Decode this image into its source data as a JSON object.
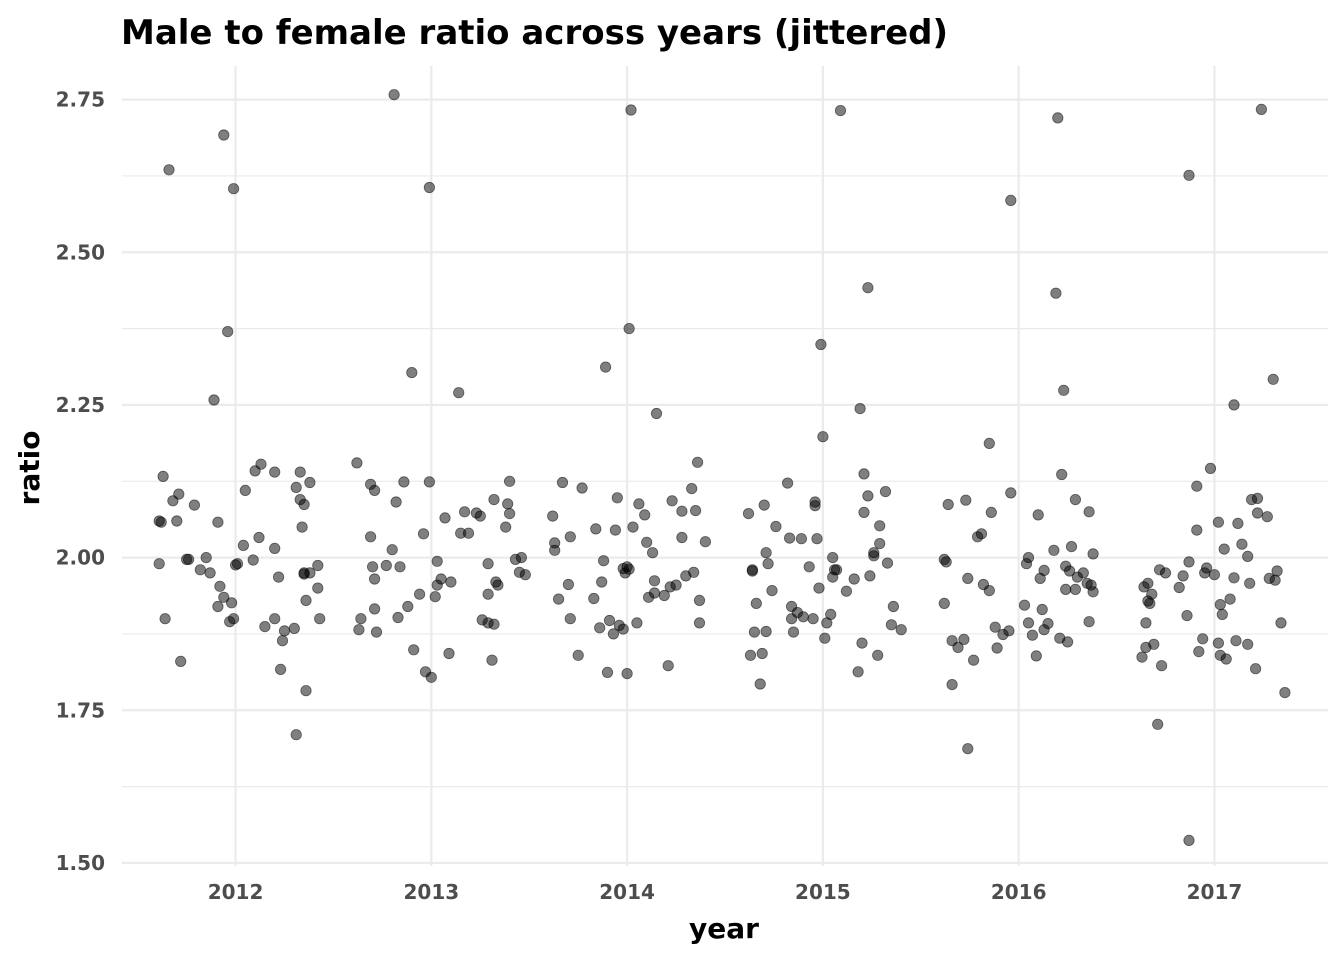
{
  "chart_data": {
    "type": "scatter",
    "title": "Male to female ratio across years (jittered)",
    "xlabel": "year",
    "ylabel": "ratio",
    "xlim": [
      2011.42,
      2017.58
    ],
    "ylim": [
      1.495,
      2.805
    ],
    "x_ticks": [
      2012,
      2013,
      2014,
      2015,
      2016,
      2017
    ],
    "x_tick_labels": [
      "2012",
      "2013",
      "2014",
      "2015",
      "2016",
      "2017"
    ],
    "y_ticks": [
      1.5,
      1.75,
      2.0,
      2.25,
      2.5,
      2.75
    ],
    "y_tick_labels": [
      "1.50",
      "1.75",
      "2.00",
      "2.25",
      "2.50",
      "2.75"
    ],
    "y_minor_ticks": [
      1.625,
      1.875,
      2.125,
      2.375,
      2.625
    ],
    "grid": true,
    "legend": "none",
    "point_color": "#000000",
    "points": [
      [
        2011.66,
        2.635
      ],
      [
        2011.61,
        2.06
      ],
      [
        2011.62,
        2.058
      ],
      [
        2011.63,
        2.133
      ],
      [
        2011.61,
        1.99
      ],
      [
        2011.64,
        1.9
      ],
      [
        2011.68,
        2.093
      ],
      [
        2011.7,
        2.06
      ],
      [
        2011.71,
        2.104
      ],
      [
        2011.72,
        1.83
      ],
      [
        2011.75,
        1.997
      ],
      [
        2011.76,
        1.997
      ],
      [
        2011.79,
        2.086
      ],
      [
        2011.82,
        1.98
      ],
      [
        2011.85,
        2.0
      ],
      [
        2011.87,
        1.975
      ],
      [
        2011.89,
        2.258
      ],
      [
        2011.91,
        2.058
      ],
      [
        2011.92,
        1.953
      ],
      [
        2011.91,
        1.92
      ],
      [
        2011.94,
        2.692
      ],
      [
        2011.96,
        2.37
      ],
      [
        2011.94,
        1.935
      ],
      [
        2011.97,
        1.895
      ],
      [
        2011.98,
        1.926
      ],
      [
        2011.99,
        2.604
      ],
      [
        2012.0,
        1.988
      ],
      [
        2012.01,
        1.99
      ],
      [
        2011.99,
        1.9
      ],
      [
        2012.05,
        2.11
      ],
      [
        2012.04,
        2.02
      ],
      [
        2012.09,
        1.996
      ],
      [
        2012.1,
        2.142
      ],
      [
        2012.13,
        2.153
      ],
      [
        2012.12,
        2.033
      ],
      [
        2012.15,
        1.887
      ],
      [
        2012.2,
        2.015
      ],
      [
        2012.2,
        2.14
      ],
      [
        2012.2,
        1.9
      ],
      [
        2012.22,
        1.968
      ],
      [
        2012.23,
        1.817
      ],
      [
        2012.24,
        1.864
      ],
      [
        2012.25,
        1.88
      ],
      [
        2012.3,
        1.884
      ],
      [
        2012.31,
        1.71
      ],
      [
        2012.31,
        2.115
      ],
      [
        2012.33,
        2.14
      ],
      [
        2012.33,
        2.095
      ],
      [
        2012.34,
        2.05
      ],
      [
        2012.35,
        2.087
      ],
      [
        2012.36,
        1.93
      ],
      [
        2012.35,
        1.975
      ],
      [
        2012.35,
        1.973
      ],
      [
        2012.36,
        1.782
      ],
      [
        2012.38,
        2.123
      ],
      [
        2012.38,
        1.975
      ],
      [
        2012.42,
        1.987
      ],
      [
        2012.42,
        1.95
      ],
      [
        2012.43,
        1.9
      ],
      [
        2012.62,
        2.155
      ],
      [
        2012.63,
        1.882
      ],
      [
        2012.64,
        1.9
      ],
      [
        2012.69,
        2.12
      ],
      [
        2012.69,
        2.034
      ],
      [
        2012.7,
        1.985
      ],
      [
        2012.71,
        2.11
      ],
      [
        2012.71,
        1.965
      ],
      [
        2012.71,
        1.916
      ],
      [
        2012.72,
        1.878
      ],
      [
        2012.77,
        1.987
      ],
      [
        2012.8,
        2.013
      ],
      [
        2012.81,
        2.758
      ],
      [
        2012.82,
        2.091
      ],
      [
        2012.83,
        1.902
      ],
      [
        2012.84,
        1.985
      ],
      [
        2012.86,
        2.124
      ],
      [
        2012.88,
        1.92
      ],
      [
        2012.9,
        2.303
      ],
      [
        2012.91,
        1.849
      ],
      [
        2012.94,
        1.94
      ],
      [
        2012.96,
        2.039
      ],
      [
        2012.97,
        1.813
      ],
      [
        2012.99,
        2.606
      ],
      [
        2013.0,
        1.804
      ],
      [
        2012.99,
        2.124
      ],
      [
        2013.02,
        1.936
      ],
      [
        2013.03,
        1.955
      ],
      [
        2013.03,
        1.994
      ],
      [
        2013.05,
        1.965
      ],
      [
        2013.07,
        2.065
      ],
      [
        2013.09,
        1.843
      ],
      [
        2013.1,
        1.96
      ],
      [
        2013.14,
        2.27
      ],
      [
        2013.15,
        2.04
      ],
      [
        2013.17,
        2.075
      ],
      [
        2013.19,
        2.04
      ],
      [
        2013.23,
        2.073
      ],
      [
        2013.25,
        2.068
      ],
      [
        2013.26,
        1.898
      ],
      [
        2013.29,
        1.99
      ],
      [
        2013.29,
        1.94
      ],
      [
        2013.29,
        1.893
      ],
      [
        2013.31,
        1.832
      ],
      [
        2013.32,
        1.891
      ],
      [
        2013.32,
        2.095
      ],
      [
        2013.33,
        1.96
      ],
      [
        2013.34,
        1.955
      ],
      [
        2013.38,
        2.05
      ],
      [
        2013.39,
        2.088
      ],
      [
        2013.4,
        2.072
      ],
      [
        2013.4,
        2.125
      ],
      [
        2013.43,
        1.997
      ],
      [
        2013.45,
        1.976
      ],
      [
        2013.46,
        2.0
      ],
      [
        2013.48,
        1.972
      ],
      [
        2013.62,
        2.068
      ],
      [
        2013.63,
        2.012
      ],
      [
        2013.63,
        2.024
      ],
      [
        2013.65,
        1.932
      ],
      [
        2013.67,
        2.123
      ],
      [
        2013.7,
        1.956
      ],
      [
        2013.71,
        1.9
      ],
      [
        2013.71,
        2.034
      ],
      [
        2013.75,
        1.84
      ],
      [
        2013.77,
        2.114
      ],
      [
        2013.83,
        1.933
      ],
      [
        2013.84,
        2.047
      ],
      [
        2013.86,
        1.885
      ],
      [
        2013.87,
        1.96
      ],
      [
        2013.88,
        1.995
      ],
      [
        2013.89,
        2.312
      ],
      [
        2013.9,
        1.812
      ],
      [
        2013.91,
        1.897
      ],
      [
        2013.93,
        1.875
      ],
      [
        2013.94,
        2.045
      ],
      [
        2013.95,
        2.098
      ],
      [
        2013.96,
        1.889
      ],
      [
        2013.98,
        1.982
      ],
      [
        2013.98,
        1.883
      ],
      [
        2013.99,
        1.975
      ],
      [
        2014.0,
        1.81
      ],
      [
        2014.0,
        1.985
      ],
      [
        2014.01,
        1.981
      ],
      [
        2014.01,
        2.375
      ],
      [
        2014.02,
        2.733
      ],
      [
        2014.03,
        2.05
      ],
      [
        2014.05,
        1.893
      ],
      [
        2014.06,
        2.088
      ],
      [
        2014.09,
        2.07
      ],
      [
        2014.1,
        2.025
      ],
      [
        2014.11,
        1.935
      ],
      [
        2014.13,
        2.008
      ],
      [
        2014.14,
        1.942
      ],
      [
        2014.14,
        1.962
      ],
      [
        2014.15,
        2.236
      ],
      [
        2014.19,
        1.938
      ],
      [
        2014.21,
        1.823
      ],
      [
        2014.22,
        1.952
      ],
      [
        2014.23,
        2.093
      ],
      [
        2014.25,
        1.955
      ],
      [
        2014.28,
        2.076
      ],
      [
        2014.28,
        2.033
      ],
      [
        2014.3,
        1.97
      ],
      [
        2014.33,
        2.113
      ],
      [
        2014.34,
        1.976
      ],
      [
        2014.35,
        2.077
      ],
      [
        2014.36,
        2.156
      ],
      [
        2014.37,
        1.893
      ],
      [
        2014.37,
        1.93
      ],
      [
        2014.4,
        2.026
      ],
      [
        2014.62,
        2.072
      ],
      [
        2014.63,
        1.84
      ],
      [
        2014.64,
        1.98
      ],
      [
        2014.64,
        1.978
      ],
      [
        2014.65,
        1.878
      ],
      [
        2014.66,
        1.925
      ],
      [
        2014.68,
        1.793
      ],
      [
        2014.69,
        1.843
      ],
      [
        2014.7,
        2.086
      ],
      [
        2014.71,
        2.008
      ],
      [
        2014.71,
        1.879
      ],
      [
        2014.72,
        1.99
      ],
      [
        2014.74,
        1.946
      ],
      [
        2014.76,
        2.051
      ],
      [
        2014.82,
        2.122
      ],
      [
        2014.83,
        2.032
      ],
      [
        2014.84,
        1.9
      ],
      [
        2014.84,
        1.92
      ],
      [
        2014.85,
        1.878
      ],
      [
        2014.87,
        1.91
      ],
      [
        2014.89,
        2.031
      ],
      [
        2014.9,
        1.903
      ],
      [
        2014.93,
        1.985
      ],
      [
        2014.95,
        1.9
      ],
      [
        2014.96,
        2.091
      ],
      [
        2014.96,
        2.085
      ],
      [
        2014.97,
        2.031
      ],
      [
        2014.98,
        1.95
      ],
      [
        2014.99,
        2.349
      ],
      [
        2015.0,
        2.198
      ],
      [
        2015.01,
        1.868
      ],
      [
        2015.02,
        1.893
      ],
      [
        2015.04,
        1.907
      ],
      [
        2015.05,
        1.968
      ],
      [
        2015.05,
        2.0
      ],
      [
        2015.06,
        1.98
      ],
      [
        2015.07,
        1.98
      ],
      [
        2015.09,
        2.732
      ],
      [
        2015.12,
        1.945
      ],
      [
        2015.16,
        1.965
      ],
      [
        2015.18,
        1.813
      ],
      [
        2015.19,
        2.244
      ],
      [
        2015.2,
        1.86
      ],
      [
        2015.21,
        2.137
      ],
      [
        2015.21,
        2.074
      ],
      [
        2015.23,
        2.442
      ],
      [
        2015.23,
        2.101
      ],
      [
        2015.24,
        1.97
      ],
      [
        2015.26,
        2.003
      ],
      [
        2015.26,
        2.008
      ],
      [
        2015.28,
        1.84
      ],
      [
        2015.29,
        2.052
      ],
      [
        2015.29,
        2.023
      ],
      [
        2015.32,
        2.108
      ],
      [
        2015.33,
        1.991
      ],
      [
        2015.35,
        1.89
      ],
      [
        2015.36,
        1.92
      ],
      [
        2015.4,
        1.882
      ],
      [
        2015.62,
        1.925
      ],
      [
        2015.62,
        1.997
      ],
      [
        2015.63,
        1.993
      ],
      [
        2015.64,
        2.087
      ],
      [
        2015.66,
        1.864
      ],
      [
        2015.66,
        1.792
      ],
      [
        2015.69,
        1.853
      ],
      [
        2015.72,
        1.866
      ],
      [
        2015.73,
        2.094
      ],
      [
        2015.74,
        1.966
      ],
      [
        2015.74,
        1.687
      ],
      [
        2015.77,
        1.832
      ],
      [
        2015.79,
        2.034
      ],
      [
        2015.81,
        2.039
      ],
      [
        2015.82,
        1.956
      ],
      [
        2015.85,
        1.946
      ],
      [
        2015.85,
        2.187
      ],
      [
        2015.86,
        2.074
      ],
      [
        2015.88,
        1.886
      ],
      [
        2015.89,
        1.852
      ],
      [
        2015.92,
        1.874
      ],
      [
        2015.95,
        1.88
      ],
      [
        2015.96,
        2.106
      ],
      [
        2015.96,
        2.585
      ],
      [
        2016.03,
        1.922
      ],
      [
        2016.04,
        1.99
      ],
      [
        2016.05,
        2.0
      ],
      [
        2016.05,
        1.893
      ],
      [
        2016.07,
        1.873
      ],
      [
        2016.09,
        1.839
      ],
      [
        2016.1,
        2.07
      ],
      [
        2016.11,
        1.966
      ],
      [
        2016.12,
        1.915
      ],
      [
        2016.13,
        1.882
      ],
      [
        2016.13,
        1.979
      ],
      [
        2016.15,
        1.892
      ],
      [
        2016.18,
        2.012
      ],
      [
        2016.19,
        2.433
      ],
      [
        2016.2,
        2.72
      ],
      [
        2016.21,
        1.868
      ],
      [
        2016.22,
        2.136
      ],
      [
        2016.23,
        2.274
      ],
      [
        2016.24,
        1.986
      ],
      [
        2016.24,
        1.948
      ],
      [
        2016.25,
        1.862
      ],
      [
        2016.26,
        1.978
      ],
      [
        2016.27,
        2.018
      ],
      [
        2016.29,
        1.948
      ],
      [
        2016.29,
        2.095
      ],
      [
        2016.3,
        1.968
      ],
      [
        2016.33,
        1.975
      ],
      [
        2016.35,
        1.958
      ],
      [
        2016.36,
        2.075
      ],
      [
        2016.36,
        1.895
      ],
      [
        2016.37,
        1.955
      ],
      [
        2016.38,
        2.006
      ],
      [
        2016.38,
        1.944
      ],
      [
        2016.63,
        1.837
      ],
      [
        2016.64,
        1.952
      ],
      [
        2016.65,
        1.893
      ],
      [
        2016.65,
        1.853
      ],
      [
        2016.66,
        1.929
      ],
      [
        2016.66,
        1.958
      ],
      [
        2016.67,
        1.925
      ],
      [
        2016.68,
        1.94
      ],
      [
        2016.69,
        1.858
      ],
      [
        2016.71,
        1.727
      ],
      [
        2016.72,
        1.98
      ],
      [
        2016.73,
        1.823
      ],
      [
        2016.75,
        1.975
      ],
      [
        2016.82,
        1.951
      ],
      [
        2016.84,
        1.97
      ],
      [
        2016.86,
        1.905
      ],
      [
        2016.87,
        2.626
      ],
      [
        2016.87,
        1.993
      ],
      [
        2016.87,
        1.537
      ],
      [
        2016.91,
        2.045
      ],
      [
        2016.91,
        2.117
      ],
      [
        2016.92,
        1.846
      ],
      [
        2016.94,
        1.867
      ],
      [
        2016.95,
        1.975
      ],
      [
        2016.96,
        1.983
      ],
      [
        2016.98,
        2.146
      ],
      [
        2017.0,
        1.972
      ],
      [
        2017.02,
        1.86
      ],
      [
        2017.02,
        2.058
      ],
      [
        2017.03,
        1.84
      ],
      [
        2017.03,
        1.923
      ],
      [
        2017.04,
        1.907
      ],
      [
        2017.05,
        2.014
      ],
      [
        2017.06,
        1.834
      ],
      [
        2017.08,
        1.932
      ],
      [
        2017.1,
        2.25
      ],
      [
        2017.1,
        1.967
      ],
      [
        2017.11,
        1.864
      ],
      [
        2017.12,
        2.056
      ],
      [
        2017.14,
        2.022
      ],
      [
        2017.17,
        2.002
      ],
      [
        2017.17,
        1.858
      ],
      [
        2017.18,
        1.958
      ],
      [
        2017.19,
        2.095
      ],
      [
        2017.21,
        1.818
      ],
      [
        2017.22,
        2.073
      ],
      [
        2017.22,
        2.097
      ],
      [
        2017.24,
        2.734
      ],
      [
        2017.27,
        2.067
      ],
      [
        2017.28,
        1.966
      ],
      [
        2017.3,
        2.292
      ],
      [
        2017.31,
        1.963
      ],
      [
        2017.32,
        1.978
      ],
      [
        2017.34,
        1.893
      ],
      [
        2017.36,
        1.779
      ]
    ]
  }
}
